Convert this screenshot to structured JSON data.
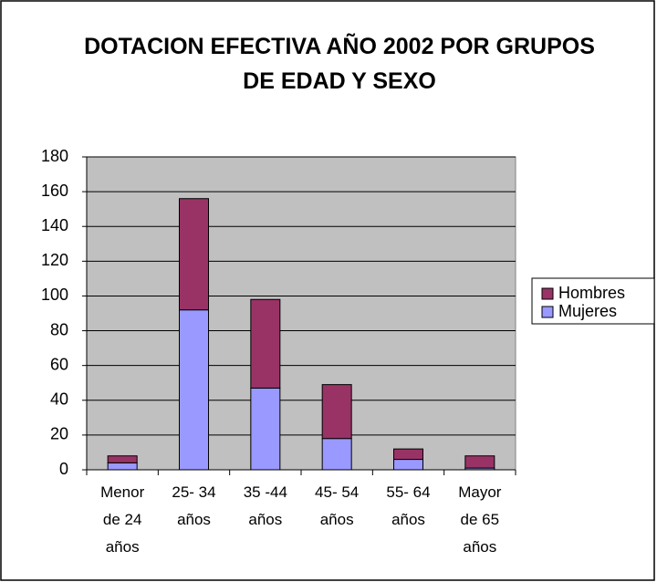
{
  "chart_data": {
    "type": "stacked_bar",
    "title": "DOTACION EFECTIVA AÑO 2002 POR GRUPOS DE EDAD Y SEXO",
    "categories": [
      "Menor de 24 años",
      "25- 34 años",
      "35 -44 años",
      "45- 54 años",
      "55- 64 años",
      "Mayor de 65 años"
    ],
    "series": [
      {
        "name": "Mujeres",
        "color": "#9999ff",
        "values": [
          4,
          92,
          47,
          18,
          6,
          1
        ]
      },
      {
        "name": "Hombres",
        "color": "#993366",
        "values": [
          4,
          64,
          51,
          31,
          6,
          7
        ]
      }
    ],
    "ylim": [
      0,
      180
    ],
    "yticks": [
      0,
      20,
      40,
      60,
      80,
      100,
      120,
      140,
      160,
      180
    ],
    "grid": true,
    "legend": "right"
  }
}
